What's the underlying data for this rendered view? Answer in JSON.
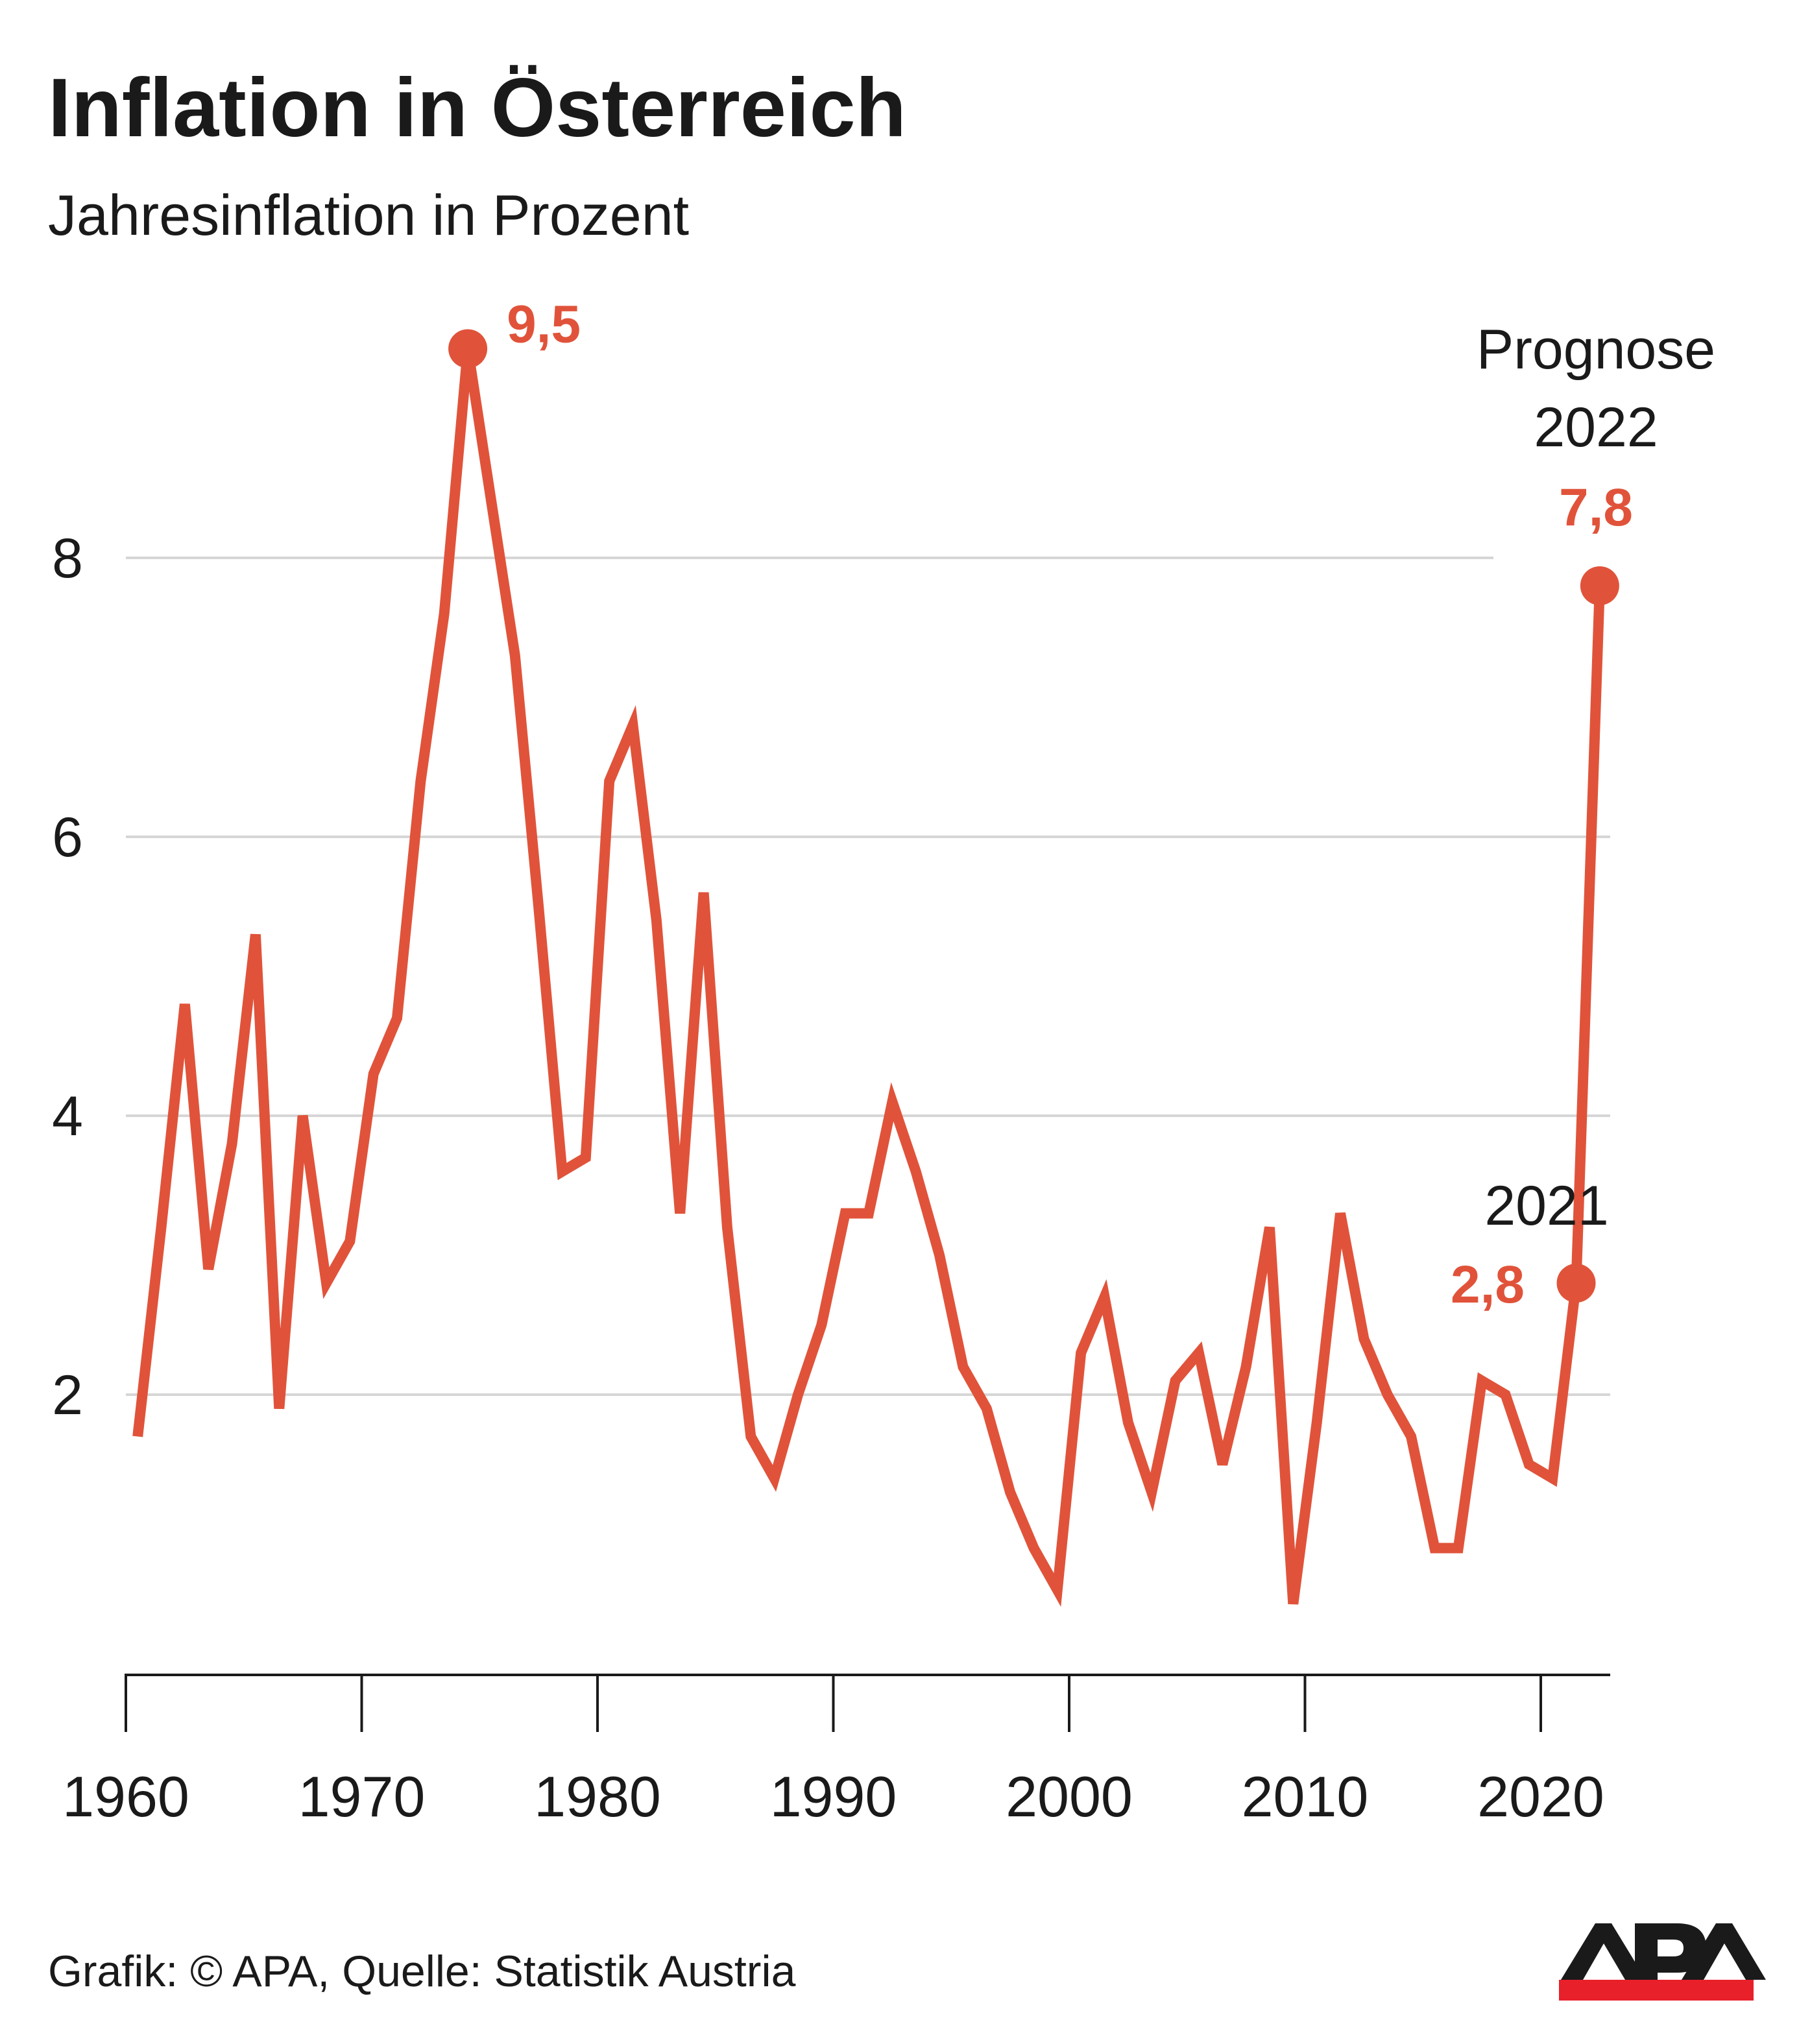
{
  "chart_data": {
    "type": "line",
    "title": "Inflation in Österreich",
    "subtitle": "Jahresinflation in Prozent",
    "xlabel": "",
    "ylabel": "",
    "ylim": [
      0,
      10
    ],
    "xlim": [
      1960,
      2023
    ],
    "grid": true,
    "y_ticks": [
      2,
      4,
      6,
      8
    ],
    "x_ticks": [
      1960,
      1970,
      1980,
      1990,
      2000,
      2010,
      2020
    ],
    "x": [
      1960,
      1961,
      1962,
      1963,
      1964,
      1965,
      1966,
      1967,
      1968,
      1969,
      1970,
      1971,
      1972,
      1973,
      1974,
      1975,
      1976,
      1977,
      1978,
      1979,
      1980,
      1981,
      1982,
      1983,
      1984,
      1985,
      1986,
      1987,
      1988,
      1989,
      1990,
      1991,
      1992,
      1993,
      1994,
      1995,
      1996,
      1997,
      1998,
      1999,
      2000,
      2001,
      2002,
      2003,
      2004,
      2005,
      2006,
      2007,
      2008,
      2009,
      2010,
      2011,
      2012,
      2013,
      2014,
      2015,
      2016,
      2017,
      2018,
      2019,
      2020,
      2021,
      2022
    ],
    "values": [
      1.7,
      3.2,
      4.8,
      2.9,
      3.8,
      5.3,
      1.9,
      4.0,
      2.8,
      3.1,
      4.3,
      4.7,
      6.4,
      7.6,
      9.5,
      8.4,
      7.3,
      5.5,
      3.6,
      3.7,
      6.4,
      6.8,
      5.4,
      3.3,
      5.6,
      3.2,
      1.7,
      1.4,
      2.0,
      2.5,
      3.3,
      3.3,
      4.1,
      3.6,
      3.0,
      2.2,
      1.9,
      1.3,
      0.9,
      0.6,
      2.3,
      2.7,
      1.8,
      1.3,
      2.1,
      2.3,
      1.5,
      2.2,
      3.2,
      0.5,
      1.8,
      3.3,
      2.4,
      2.0,
      1.7,
      0.9,
      0.9,
      2.1,
      2.0,
      1.5,
      1.4,
      2.8,
      7.8
    ],
    "color": "#e0533a",
    "annotations": {
      "peak": {
        "year": 1974,
        "label": "9,5"
      },
      "y2021": {
        "year": 2021,
        "title": "2021",
        "label": "2,8"
      },
      "y2022": {
        "year": 2022,
        "title1": "Prognose",
        "title2": "2022",
        "label": "7,8"
      }
    }
  },
  "footer": {
    "source": "Grafik: © APA, Quelle: Statistik Austria"
  },
  "logo": {
    "text": "APA",
    "bar_color": "#e8202a"
  }
}
